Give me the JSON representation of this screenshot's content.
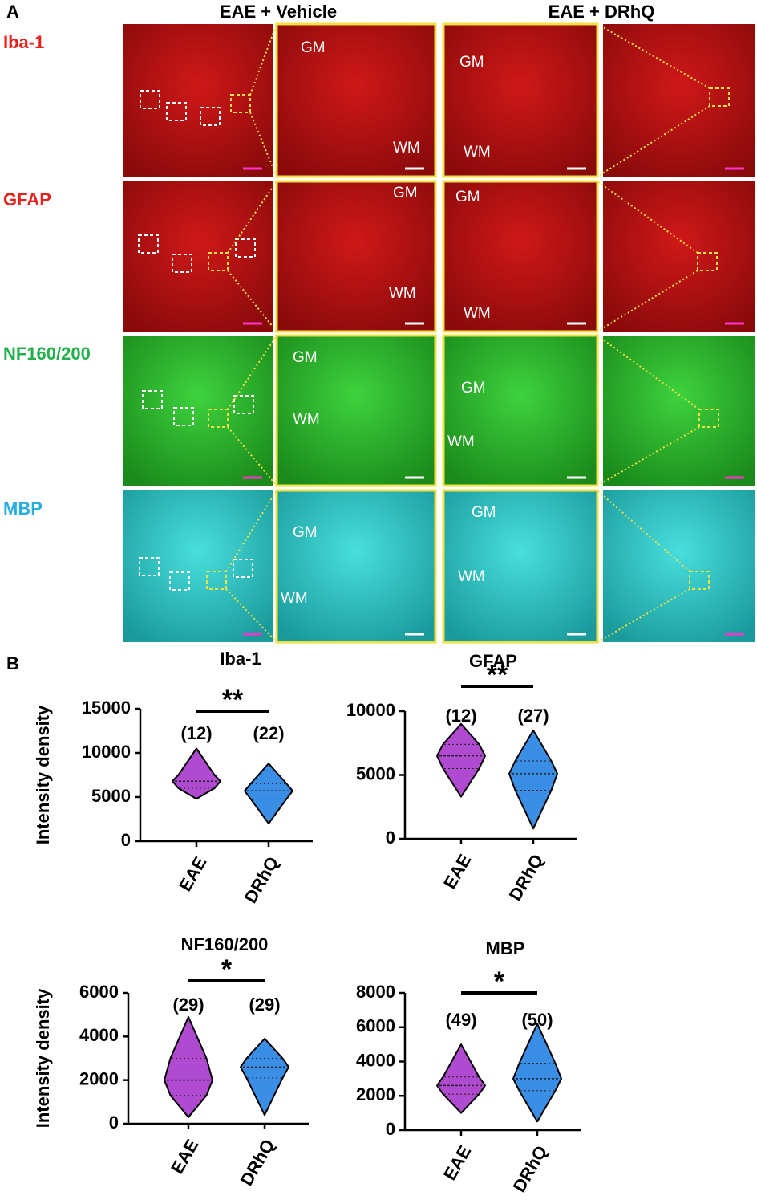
{
  "panel_a": {
    "label": "A",
    "columns": [
      "EAE + Vehicle",
      "EAE + DRhQ"
    ],
    "rows": [
      {
        "label": "Iba-1",
        "color": "#e8201a",
        "insets": [
          [
            "GM",
            "WM"
          ],
          [
            "GM",
            "WM"
          ]
        ]
      },
      {
        "label": "GFAP",
        "color": "#e8201a",
        "insets": [
          [
            "GM",
            "WM"
          ],
          [
            "GM",
            "WM"
          ]
        ]
      },
      {
        "label": "NF160/200",
        "color": "#22b04a",
        "insets": [
          [
            "GM",
            "WM"
          ],
          [
            "GM",
            "WM"
          ]
        ]
      },
      {
        "label": "MBP",
        "color": "#29aee0",
        "insets": [
          [
            "GM",
            "WM"
          ],
          [
            "GM",
            "WM"
          ]
        ]
      }
    ]
  },
  "panel_b": {
    "label": "B"
  },
  "chart_data": [
    {
      "type": "violin",
      "title": "Iba-1",
      "ylabel": "Intensity density",
      "ylim": [
        0,
        15000
      ],
      "yticks": [
        0,
        5000,
        10000,
        15000
      ],
      "significance": "**",
      "series": [
        {
          "name": "EAE",
          "color": "#b04ad0",
          "n_label": "(12)",
          "min": 4800,
          "q1": 6000,
          "median": 6800,
          "q3": 7500,
          "max": 10500
        },
        {
          "name": "DRhQ",
          "color": "#3a8ee6",
          "n_label": "(22)",
          "min": 2000,
          "q1": 4800,
          "median": 5700,
          "q3": 6500,
          "max": 8800
        }
      ]
    },
    {
      "type": "violin",
      "title": "GFAP",
      "ylim": [
        0,
        10000
      ],
      "yticks": [
        0,
        5000,
        10000
      ],
      "significance": "**",
      "series": [
        {
          "name": "EAE",
          "color": "#b04ad0",
          "n_label": "(12)",
          "min": 3300,
          "q1": 5500,
          "median": 6500,
          "q3": 7400,
          "max": 9000
        },
        {
          "name": "DRhQ",
          "color": "#3a8ee6",
          "n_label": "(27)",
          "min": 800,
          "q1": 3800,
          "median": 5100,
          "q3": 6100,
          "max": 8500
        }
      ]
    },
    {
      "type": "violin",
      "title": "NF160/200",
      "ylabel": "Intensity density",
      "ylim": [
        0,
        6000
      ],
      "yticks": [
        0,
        2000,
        4000,
        6000
      ],
      "significance": "*",
      "series": [
        {
          "name": "EAE",
          "color": "#b04ad0",
          "n_label": "(29)",
          "min": 300,
          "q1": 1300,
          "median": 2000,
          "q3": 3000,
          "max": 4900
        },
        {
          "name": "DRhQ",
          "color": "#3a8ee6",
          "n_label": "(29)",
          "min": 400,
          "q1": 2100,
          "median": 2600,
          "q3": 3000,
          "max": 3900
        }
      ]
    },
    {
      "type": "violin",
      "title": "MBP",
      "ylim": [
        0,
        8000
      ],
      "yticks": [
        0,
        2000,
        4000,
        6000,
        8000
      ],
      "significance": "*",
      "series": [
        {
          "name": "EAE",
          "color": "#b04ad0",
          "n_label": "(49)",
          "min": 1000,
          "q1": 2100,
          "median": 2600,
          "q3": 3100,
          "max": 5000
        },
        {
          "name": "DRhQ",
          "color": "#3a8ee6",
          "n_label": "(50)",
          "min": 500,
          "q1": 2300,
          "median": 3000,
          "q3": 3900,
          "max": 6200
        }
      ]
    }
  ]
}
